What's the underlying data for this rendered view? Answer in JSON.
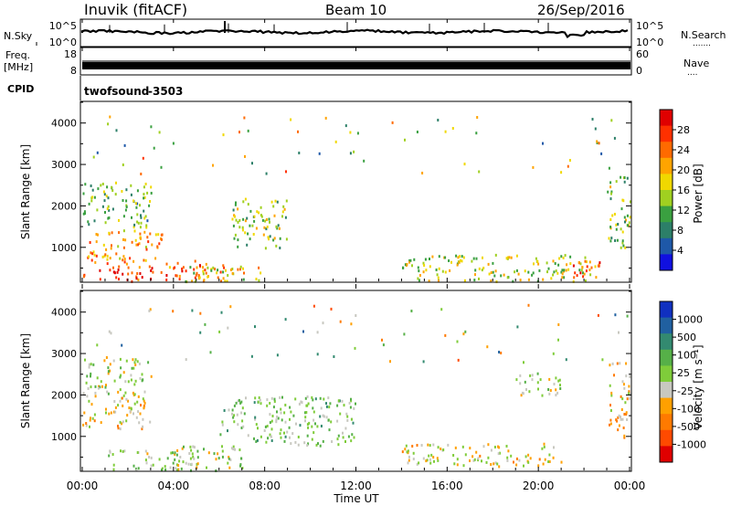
{
  "header": {
    "station": "Inuvik (fitACF)",
    "beam": "Beam 10",
    "date": "26/Sep/2016"
  },
  "strips": {
    "nsky": {
      "label": "N.Sky",
      "tick_top": "10^5",
      "tick_bottom": "10^0"
    },
    "nsearch": {
      "label": "N.Search",
      "tick_top": "10^5",
      "tick_bottom": "10^0",
      "dots": "......."
    },
    "freq": {
      "label_line1": "Freq.",
      "label_line2": "[MHz]",
      "tick_top": "18",
      "tick_bottom": "8"
    },
    "nave": {
      "label": "Nave",
      "tick_top": "60",
      "tick_bottom": "0",
      "dots": "...."
    },
    "cpid": {
      "label": "CPID",
      "program": "twofsound",
      "id": "-3503"
    }
  },
  "x_axis": {
    "label": "Time UT",
    "ticks": [
      "00:00",
      "04:00",
      "08:00",
      "12:00",
      "16:00",
      "20:00",
      "00:00"
    ]
  },
  "power_colorbar": {
    "label": "Power [dB]",
    "ticks": [
      "28",
      "24",
      "20",
      "16",
      "12",
      "8",
      "4"
    ],
    "colors": [
      "#e00000",
      "#ff3000",
      "#ff6a00",
      "#ffa400",
      "#f0d800",
      "#a0d020",
      "#3aa040",
      "#2c7f68",
      "#1e58a8",
      "#1010e0"
    ]
  },
  "velocity_colorbar": {
    "label": "Velocity [m s⁻¹]",
    "ticks": [
      "1000",
      "500",
      "100",
      "25",
      "-25",
      "-100",
      "-500",
      "-1000"
    ],
    "colors": [
      "#1030c0",
      "#2060a0",
      "#338a70",
      "#56b048",
      "#7fcc3a",
      "#c8c8c0",
      "#ffa000",
      "#ff7a00",
      "#ff4a00",
      "#e00000"
    ]
  },
  "chart_data": [
    {
      "type": "heatmap",
      "panel": "power",
      "ylabel": "Slant Range [km]",
      "xlabel": "",
      "x_range_hours": [
        0,
        24
      ],
      "ylim": [
        180,
        4500
      ],
      "y_ticks": [
        1000,
        2000,
        3000,
        4000
      ],
      "colorbar_range_db": [
        0,
        32
      ],
      "regions": [
        {
          "t0": 0.0,
          "t1": 6.2,
          "r0": 200,
          "r1": 700,
          "value": 26
        },
        {
          "t0": 0.2,
          "t1": 3.5,
          "r0": 700,
          "r1": 1500,
          "value": 22
        },
        {
          "t0": 0.0,
          "t1": 3.0,
          "r0": 1500,
          "r1": 2600,
          "value": 12
        },
        {
          "t0": 4.5,
          "t1": 8.0,
          "r0": 200,
          "r1": 600,
          "value": 18
        },
        {
          "t0": 6.5,
          "t1": 9.0,
          "r0": 1000,
          "r1": 2200,
          "value": 14
        },
        {
          "t0": 14.0,
          "t1": 22.5,
          "r0": 200,
          "r1": 850,
          "value": 16
        },
        {
          "t0": 21.0,
          "t1": 23.0,
          "r0": 300,
          "r1": 700,
          "value": 26
        },
        {
          "t0": 23.0,
          "t1": 24.0,
          "r0": 1000,
          "r1": 2800,
          "value": 14
        }
      ]
    },
    {
      "type": "heatmap",
      "panel": "velocity",
      "ylabel": "Slant Range [km]",
      "xlabel": "Time UT",
      "x_range_hours": [
        0,
        24
      ],
      "ylim": [
        180,
        4500
      ],
      "y_ticks": [
        1000,
        2000,
        3000,
        4000
      ],
      "colorbar_range_ms": [
        -1000,
        1000
      ],
      "regions": [
        {
          "t0": 0.0,
          "t1": 3.0,
          "r0": 1200,
          "r1": 2000,
          "value": -200
        },
        {
          "t0": 0.0,
          "t1": 3.0,
          "r0": 2000,
          "r1": 2900,
          "value": 0
        },
        {
          "t0": 1.0,
          "t1": 5.0,
          "r0": 200,
          "r1": 700,
          "value": 50
        },
        {
          "t0": 4.0,
          "t1": 7.0,
          "r0": 200,
          "r1": 800,
          "value": 0
        },
        {
          "t0": 6.0,
          "t1": 12.0,
          "r0": 800,
          "r1": 2000,
          "value": 150
        },
        {
          "t0": 14.0,
          "t1": 21.0,
          "r0": 300,
          "r1": 850,
          "value": -150
        },
        {
          "t0": 19.0,
          "t1": 21.0,
          "r0": 2000,
          "r1": 2600,
          "value": 0
        },
        {
          "t0": 23.0,
          "t1": 24.0,
          "r0": 1000,
          "r1": 2800,
          "value": -300
        }
      ]
    }
  ]
}
